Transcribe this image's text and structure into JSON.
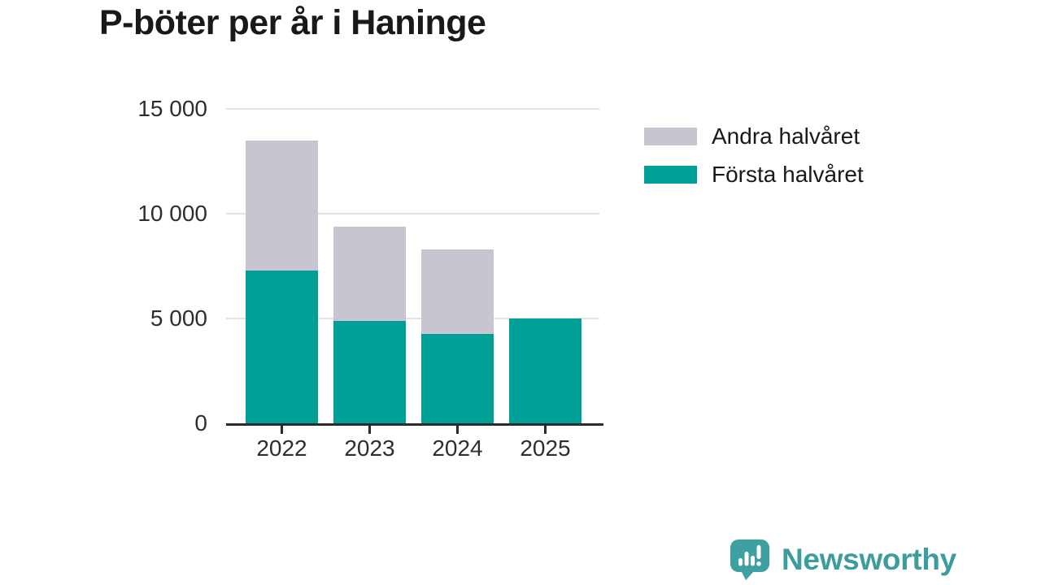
{
  "title": "P-böter per år i Haninge",
  "chart_data": {
    "type": "bar",
    "stacked": true,
    "title": "P-böter per år i Haninge",
    "categories": [
      "2022",
      "2023",
      "2024",
      "2025"
    ],
    "series": [
      {
        "name": "Första halvåret",
        "color": "#00a096",
        "values": [
          7300,
          4900,
          4250,
          5000
        ]
      },
      {
        "name": "Andra halvåret",
        "color": "#c8c5d0",
        "values": [
          6200,
          4500,
          4050,
          0
        ]
      }
    ],
    "xlabel": "",
    "ylabel": "",
    "ylim": [
      0,
      15000
    ],
    "yticks": [
      0,
      5000,
      10000,
      15000
    ],
    "ytick_labels": [
      "0",
      "5 000",
      "10 000",
      "15 000"
    ],
    "grid": "horizontal",
    "legend_position": "right"
  },
  "legend": {
    "items": [
      {
        "label": "Andra halvåret",
        "color": "#c8c5d0"
      },
      {
        "label": "Första halvåret",
        "color": "#00a096"
      }
    ]
  },
  "branding": {
    "logo_text": "Newsworthy",
    "logo_color": "#3d9c9e",
    "logo_icon": "speech-bubble-bar-chart"
  }
}
